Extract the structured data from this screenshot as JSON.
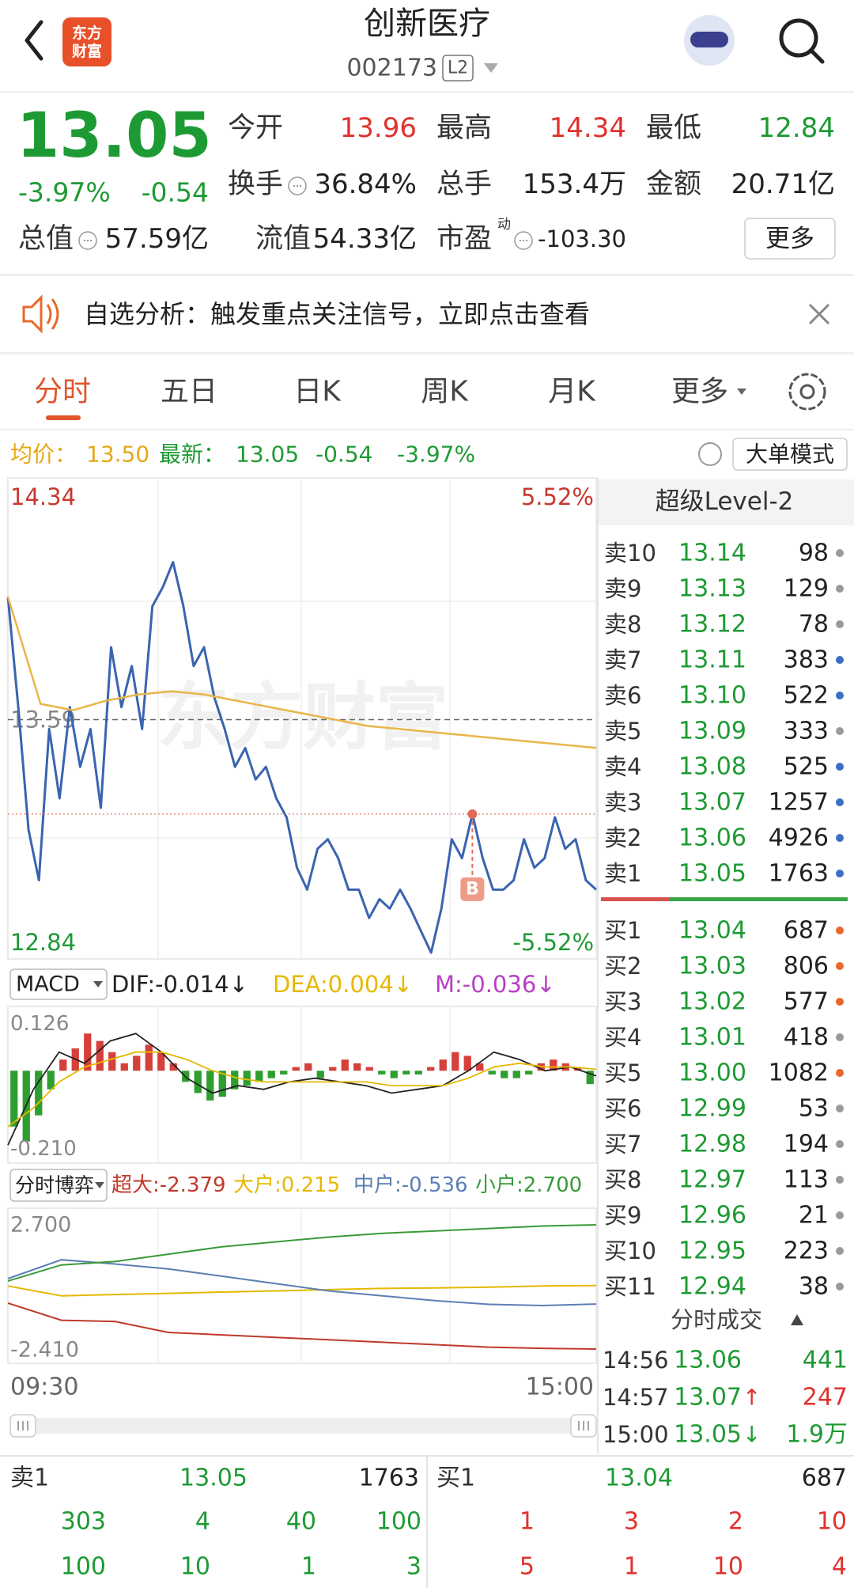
{
  "header": {
    "title": "创新医疗",
    "code": "002173",
    "level": "L2",
    "logo": [
      "东方",
      "财富"
    ]
  },
  "quote": {
    "price": "13.05",
    "change_pct": "-3.97%",
    "change": "-0.54",
    "stats": [
      {
        "label": "今开",
        "value": "13.96",
        "color": "#e0322d"
      },
      {
        "label": "最高",
        "value": "14.34",
        "color": "#e0322d"
      },
      {
        "label": "最低",
        "value": "12.84",
        "color": "#1e9a34"
      },
      {
        "label": "换手",
        "value": "36.84%",
        "color": "#222222",
        "icon": true
      },
      {
        "label": "总手",
        "value": "153.4万",
        "color": "#222222"
      },
      {
        "label": "金额",
        "value": "20.71亿",
        "color": "#222222"
      },
      {
        "label": "总值",
        "value": "57.59亿",
        "color": "#222222",
        "icon": true
      },
      {
        "label": "流值",
        "value": "54.33亿",
        "color": "#222222"
      },
      {
        "label": "市盈",
        "sup": "动",
        "value": "-103.30",
        "color": "#222222",
        "icon": true
      }
    ],
    "more": "更多"
  },
  "notice": {
    "text": "自选分析：触发重点关注信号，立即点击查看"
  },
  "tabs": [
    "分时",
    "五日",
    "日K",
    "周K",
    "月K",
    "更多"
  ],
  "info": {
    "avg_label": "均价：",
    "avg": "13.50",
    "latest_label": "最新：",
    "latest": "13.05",
    "change": "-0.54",
    "change_pct": "-3.97%",
    "mode": "大单模式"
  },
  "chart_data": [
    {
      "type": "line",
      "watermark": "东方财富",
      "ylim": [
        12.84,
        14.34
      ],
      "yticks": [
        12.84,
        13.59,
        14.34
      ],
      "y2lim": [
        -5.52,
        5.52
      ],
      "y2ticks": [
        {
          "value": -5.52,
          "label": "-5.52%"
        },
        {
          "value": 5.52,
          "label": "5.52%"
        }
      ],
      "marker": {
        "label": "B",
        "value": 13.29
      },
      "series": [
        {
          "color": "#3a64b0",
          "values": [
            13.98,
            13.63,
            13.24,
            13.08,
            13.56,
            13.34,
            13.63,
            13.44,
            13.56,
            13.31,
            13.82,
            13.63,
            13.76,
            13.56,
            13.95,
            14.01,
            14.09,
            13.95,
            13.76,
            13.82,
            13.66,
            13.56,
            13.44,
            13.5,
            13.4,
            13.44,
            13.34,
            13.28,
            13.12,
            13.05,
            13.18,
            13.21,
            13.15,
            13.05,
            13.05,
            12.96,
            13.02,
            12.99,
            13.05,
            12.99,
            12.92,
            12.85,
            12.99,
            13.21,
            13.15,
            13.29,
            13.15,
            13.05,
            13.05,
            13.08,
            13.21,
            13.12,
            13.15,
            13.28,
            13.18,
            13.21,
            13.08,
            13.05
          ]
        },
        {
          "color": "#e8b64a",
          "values": [
            13.98,
            13.64,
            13.62,
            13.65,
            13.67,
            13.68,
            13.67,
            13.65,
            13.63,
            13.61,
            13.59,
            13.57,
            13.56,
            13.55,
            13.54,
            13.53,
            13.52,
            13.51,
            13.5
          ]
        }
      ]
    },
    {
      "type": "macd",
      "title": "MACD",
      "ylim": [
        -0.21,
        0.126
      ],
      "yticks": [
        {
          "value": -0.21,
          "label": "-0.210"
        },
        0.126
      ],
      "series": [
        {
          "name": "DIF:-0.014↓",
          "color": "#222222",
          "values": [
            -0.2,
            -0.05,
            0.05,
            0.02,
            0.08,
            0.1,
            0.05,
            -0.02,
            -0.06,
            -0.04,
            -0.05,
            -0.03,
            -0.02,
            -0.03,
            -0.04,
            -0.06,
            -0.05,
            -0.04,
            0.0,
            0.05,
            0.03,
            0.0,
            0.01,
            -0.014
          ]
        },
        {
          "name": "DEA:0.004↓",
          "color": "#e6b800",
          "values": [
            -0.15,
            -0.1,
            -0.03,
            0.01,
            0.03,
            0.05,
            0.05,
            0.03,
            0.0,
            -0.02,
            -0.03,
            -0.03,
            -0.03,
            -0.03,
            -0.03,
            -0.04,
            -0.04,
            -0.04,
            -0.02,
            0.01,
            0.02,
            0.01,
            0.01,
            0.004
          ]
        },
        {
          "name": "M:-0.036↓",
          "color": "#b83fc6",
          "type": "bar",
          "up_color": "#d6403a",
          "down_color": "#2e9e2e",
          "values": [
            -0.15,
            -0.19,
            -0.12,
            -0.05,
            0.03,
            0.06,
            0.1,
            0.08,
            0.05,
            0.02,
            0.04,
            0.07,
            0.05,
            0.02,
            -0.03,
            -0.06,
            -0.08,
            -0.07,
            -0.05,
            -0.04,
            -0.03,
            -0.02,
            -0.01,
            0.01,
            0.02,
            -0.02,
            0.01,
            0.03,
            0.02,
            0.01,
            -0.01,
            -0.02,
            -0.01,
            -0.01,
            0.01,
            0.03,
            0.05,
            0.04,
            0.02,
            -0.01,
            -0.02,
            -0.02,
            -0.01,
            0.02,
            0.03,
            0.02,
            0.01,
            -0.036
          ]
        }
      ]
    },
    {
      "type": "line",
      "title": "分时博弈",
      "ylim": [
        -2.41,
        2.7
      ],
      "yticks": [
        {
          "value": -2.41,
          "label": "-2.410"
        },
        {
          "value": 2.7,
          "label": "2.700"
        }
      ],
      "x_labels": [
        "09:30",
        "15:00"
      ],
      "series": [
        {
          "name": "超大:-2.379",
          "color": "#c0392b",
          "values": [
            -0.5,
            -1.2,
            -1.25,
            -1.7,
            -1.8,
            -1.9,
            -2.0,
            -2.1,
            -2.2,
            -2.3,
            -2.35,
            -2.379
          ]
        },
        {
          "name": "大户:0.215",
          "color": "#e6b800",
          "values": [
            0.2,
            -0.2,
            -0.15,
            -0.1,
            -0.05,
            0.0,
            0.05,
            0.1,
            0.12,
            0.15,
            0.2,
            0.215
          ]
        },
        {
          "name": "中户:-0.536",
          "color": "#5b7fb5",
          "values": [
            0.5,
            1.27,
            1.1,
            0.9,
            0.6,
            0.3,
            0.0,
            -0.2,
            -0.4,
            -0.55,
            -0.6,
            -0.536
          ]
        },
        {
          "name": "小户:2.700",
          "color": "#3a9a3a",
          "values": [
            0.4,
            1.06,
            1.2,
            1.5,
            1.8,
            2.0,
            2.2,
            2.35,
            2.45,
            2.55,
            2.65,
            2.7
          ]
        }
      ]
    }
  ],
  "level2": {
    "title": "超级Level-2",
    "asks": [
      {
        "label": "卖10",
        "price": "13.14",
        "volume": "98",
        "dot": "#9a9a9a"
      },
      {
        "label": "卖9",
        "price": "13.13",
        "volume": "129",
        "dot": "#9a9a9a"
      },
      {
        "label": "卖8",
        "price": "13.12",
        "volume": "78",
        "dot": "#9a9a9a"
      },
      {
        "label": "卖7",
        "price": "13.11",
        "volume": "383",
        "dot": "#3a6fc4"
      },
      {
        "label": "卖6",
        "price": "13.10",
        "volume": "522",
        "dot": "#3a6fc4"
      },
      {
        "label": "卖5",
        "price": "13.09",
        "volume": "333",
        "dot": "#9a9a9a"
      },
      {
        "label": "卖4",
        "price": "13.08",
        "volume": "525",
        "dot": "#3a6fc4"
      },
      {
        "label": "卖3",
        "price": "13.07",
        "volume": "1257",
        "dot": "#3a6fc4"
      },
      {
        "label": "卖2",
        "price": "13.06",
        "volume": "4926",
        "dot": "#3a6fc4"
      },
      {
        "label": "卖1",
        "price": "13.05",
        "volume": "1763",
        "dot": "#3a6fc4"
      }
    ],
    "bids": [
      {
        "label": "买1",
        "price": "13.04",
        "volume": "687",
        "dot": "#e8692a"
      },
      {
        "label": "买2",
        "price": "13.03",
        "volume": "806",
        "dot": "#e8692a"
      },
      {
        "label": "买3",
        "price": "13.02",
        "volume": "577",
        "dot": "#e8692a"
      },
      {
        "label": "买4",
        "price": "13.01",
        "volume": "418",
        "dot": "#9a9a9a"
      },
      {
        "label": "买5",
        "price": "13.00",
        "volume": "1082",
        "dot": "#e8692a"
      },
      {
        "label": "买6",
        "price": "12.99",
        "volume": "53",
        "dot": "#9a9a9a"
      },
      {
        "label": "买7",
        "price": "12.98",
        "volume": "194",
        "dot": "#9a9a9a"
      },
      {
        "label": "买8",
        "price": "12.97",
        "volume": "113",
        "dot": "#9a9a9a"
      },
      {
        "label": "买9",
        "price": "12.96",
        "volume": "21",
        "dot": "#9a9a9a"
      },
      {
        "label": "买10",
        "price": "12.95",
        "volume": "223",
        "dot": "#9a9a9a"
      },
      {
        "label": "买11",
        "price": "12.94",
        "volume": "38",
        "dot": "#9a9a9a"
      }
    ],
    "trades_title": "分时成交",
    "trades": [
      {
        "time": "14:56",
        "price": "13.06",
        "arrow": "",
        "arrow_color": "#1e9a34",
        "volume": "441",
        "volume_color": "#1e9a34"
      },
      {
        "time": "14:57",
        "price": "13.07",
        "arrow": "↑",
        "arrow_color": "#e0322d",
        "volume": "247",
        "volume_color": "#e0322d"
      },
      {
        "time": "15:00",
        "price": "13.05",
        "arrow": "↓",
        "arrow_color": "#1e9a34",
        "volume": "1.9万",
        "volume_color": "#1e9a34"
      }
    ]
  },
  "bottom": {
    "sell": {
      "label": "卖1",
      "price": "13.05",
      "volume": "1763",
      "rows": [
        [
          "303",
          "4",
          "40",
          "100"
        ],
        [
          "100",
          "10",
          "1",
          "3"
        ]
      ]
    },
    "buy": {
      "label": "买1",
      "price": "13.04",
      "volume": "687",
      "rows": [
        [
          "1",
          "3",
          "2",
          "10"
        ],
        [
          "5",
          "1",
          "10",
          "4"
        ]
      ]
    }
  }
}
